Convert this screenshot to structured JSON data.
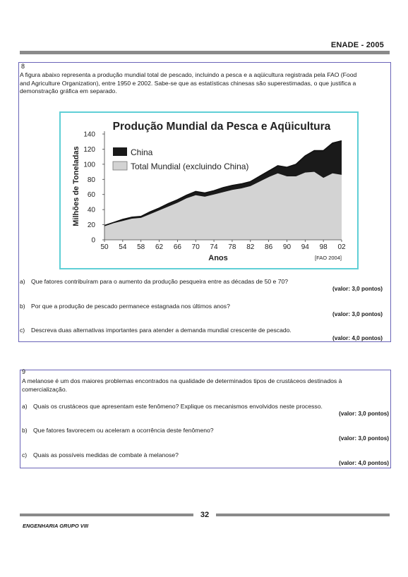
{
  "header": {
    "title": "ENADE - 2005"
  },
  "q8": {
    "number": "8",
    "intro_lines": [
      "A figura abaixo representa a produção mundial total de pescado, incluindo a pesca e a aqüicultura registrada pela FAO (Food",
      "and Agriculture Organization), entre 1950 e 2002. Sabe-se que as estatísticas chinesas são superestimadas, o que justifica a",
      "demonstração gráfica em separado."
    ],
    "items": [
      {
        "letter": "a)",
        "text": "Que fatores contribuíram para o aumento da produção pesqueira entre as décadas de 50 e 70?",
        "valor": "(valor: 3,0 pontos)"
      },
      {
        "letter": "b)",
        "text": "Por que a produção de pescado permanece estagnada nos últimos anos?",
        "valor": "(valor: 3,0 pontos)"
      },
      {
        "letter": "c)",
        "text": "Descreva duas alternativas importantes para atender a demanda mundial crescente de pescado.",
        "valor": "(valor: 4,0 pontos)"
      }
    ]
  },
  "chart_data": {
    "type": "area",
    "title": "Produção Mundial da Pesca e Aqüicultura",
    "xlabel": "Anos",
    "ylabel": "Milhões de Toneladas",
    "source_note": "[FAO 2004]",
    "x_tick_labels": [
      "50",
      "54",
      "58",
      "62",
      "66",
      "70",
      "74",
      "78",
      "82",
      "86",
      "90",
      "94",
      "98",
      "02"
    ],
    "y_tick_labels": [
      "0",
      "20",
      "40",
      "60",
      "80",
      "100",
      "120",
      "140"
    ],
    "ylim": [
      0,
      140
    ],
    "xlim": [
      1950,
      2002
    ],
    "stacked": true,
    "legend_position": "top-left",
    "x": [
      1950,
      1952,
      1954,
      1956,
      1958,
      1960,
      1962,
      1964,
      1966,
      1968,
      1970,
      1972,
      1974,
      1976,
      1978,
      1980,
      1982,
      1984,
      1986,
      1988,
      1990,
      1992,
      1994,
      1996,
      1998,
      2000,
      2002
    ],
    "series": [
      {
        "name": "Total Mundial (excluindo China)",
        "color": "#d3d3d3",
        "values": [
          18,
          22,
          25,
          28,
          29,
          34,
          39,
          44,
          49,
          55,
          59,
          57,
          60,
          63,
          66,
          68,
          71,
          77,
          83,
          88,
          84,
          84,
          89,
          90,
          82,
          88,
          86
        ]
      },
      {
        "name": "China",
        "color": "#1a1a1a",
        "values": [
          1,
          1,
          2,
          2,
          2,
          3,
          3,
          4,
          4,
          4,
          5,
          5,
          5,
          6,
          6,
          6,
          6,
          7,
          8,
          10,
          12,
          16,
          22,
          28,
          36,
          40,
          45
        ]
      }
    ]
  },
  "q9": {
    "number": "9",
    "intro_lines": [
      "A melanose é um dos maiores problemas encontrados na qualidade de determinados tipos de crustáceos destinados à",
      "comercialização."
    ],
    "items": [
      {
        "letter": "a)",
        "text": "Quais os crustáceos que apresentam este fenômeno? Explique os mecanismos envolvidos neste processo.",
        "valor": "(valor: 3,0 pontos)"
      },
      {
        "letter": "b)",
        "text": "Que fatores favorecem ou aceleram a ocorrência deste fenômeno?",
        "valor": "(valor: 3,0 pontos)"
      },
      {
        "letter": "c)",
        "text": "Quais as possíveis medidas de combate à melanose?",
        "valor": "(valor: 4,0 pontos)"
      }
    ]
  },
  "footer": {
    "page": "32",
    "course": "ENGENHARIA GRUPO VIII"
  }
}
